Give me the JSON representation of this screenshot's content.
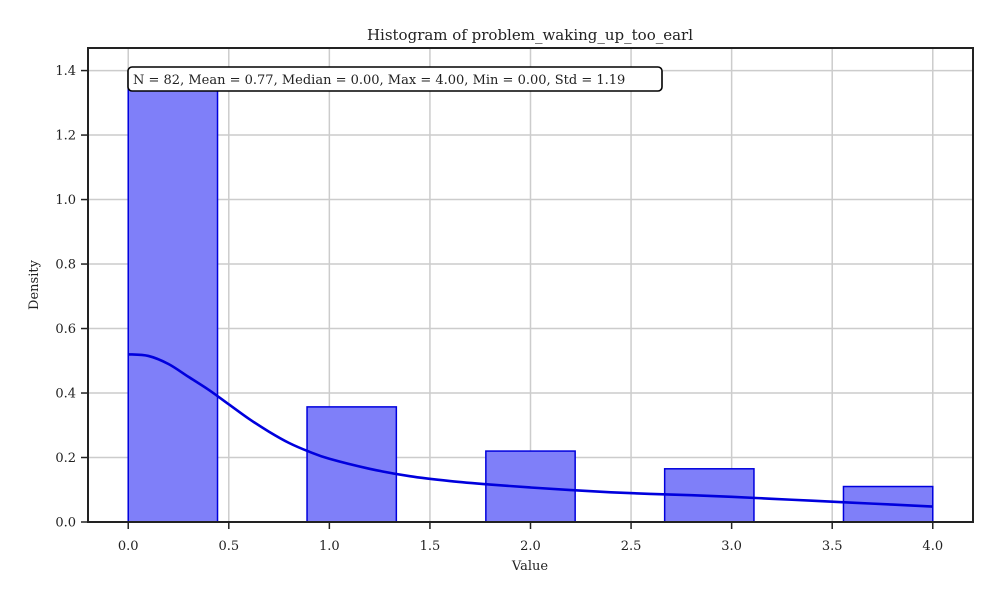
{
  "chart_data": {
    "type": "bar",
    "title": "Histogram of problem_waking_up_too_earl",
    "xlabel": "Value",
    "ylabel": "Density",
    "stats_text": "N = 82, Mean = 0.77, Median = 0.00, Max = 4.00, Min = 0.00, Std = 1.19",
    "xlim": [
      -0.2,
      4.2
    ],
    "ylim": [
      0,
      1.47
    ],
    "xticks": [
      0.0,
      0.5,
      1.0,
      1.5,
      2.0,
      2.5,
      3.0,
      3.5,
      4.0
    ],
    "xtick_labels": [
      "0.0",
      "0.5",
      "1.0",
      "1.5",
      "2.0",
      "2.5",
      "3.0",
      "3.5",
      "4.0"
    ],
    "yticks": [
      0.0,
      0.2,
      0.4,
      0.6,
      0.8,
      1.0,
      1.2,
      1.4
    ],
    "ytick_labels": [
      "0.0",
      "0.2",
      "0.4",
      "0.6",
      "0.8",
      "1.0",
      "1.2",
      "1.4"
    ],
    "grid": true,
    "bars": [
      {
        "x0": 0.0,
        "x1": 0.444,
        "density": 1.368
      },
      {
        "x0": 0.889,
        "x1": 1.333,
        "density": 0.357
      },
      {
        "x0": 1.778,
        "x1": 2.222,
        "density": 0.22
      },
      {
        "x0": 2.667,
        "x1": 3.111,
        "density": 0.165
      },
      {
        "x0": 3.556,
        "x1": 4.0,
        "density": 0.11
      }
    ],
    "kde": {
      "x": [
        0.0,
        0.1,
        0.2,
        0.3,
        0.4,
        0.5,
        0.6,
        0.7,
        0.8,
        0.9,
        1.0,
        1.2,
        1.4,
        1.6,
        1.8,
        2.0,
        2.2,
        2.4,
        2.6,
        2.8,
        3.0,
        3.2,
        3.4,
        3.6,
        3.8,
        4.0
      ],
      "y": [
        0.52,
        0.515,
        0.49,
        0.45,
        0.41,
        0.365,
        0.32,
        0.28,
        0.245,
        0.218,
        0.196,
        0.165,
        0.142,
        0.127,
        0.116,
        0.107,
        0.099,
        0.092,
        0.087,
        0.083,
        0.078,
        0.072,
        0.066,
        0.06,
        0.054,
        0.048
      ]
    },
    "colors": {
      "bar_fill": "#7f7ff9",
      "bar_edge": "#0000dd",
      "kde_line": "#0000dd",
      "grid": "#cccccc",
      "axis": "#222222"
    }
  }
}
